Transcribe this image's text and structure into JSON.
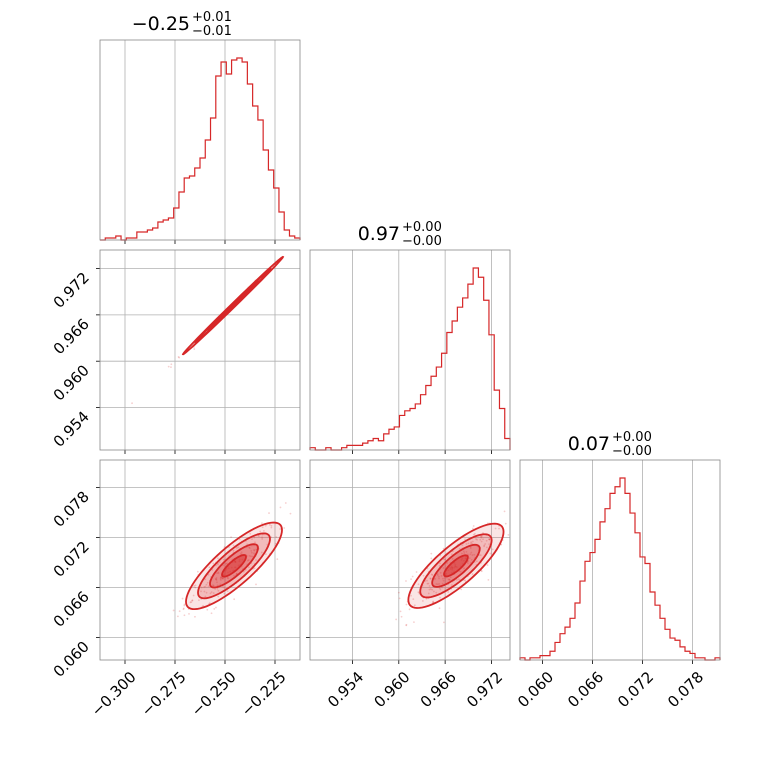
{
  "chart_data": {
    "type": "corner",
    "color": "#d62728",
    "titles": [
      {
        "value": "−0.25",
        "plus": "+0.01",
        "minus": "−0.01"
      },
      {
        "value": "0.97",
        "plus": "+0.00",
        "minus": "−0.00"
      },
      {
        "value": "0.07",
        "plus": "+0.00",
        "minus": "−0.00"
      }
    ],
    "params": [
      {
        "range": [
          -0.3125,
          -0.2125
        ],
        "ticks": [
          -0.3,
          -0.275,
          -0.25,
          -0.225
        ],
        "tick_labels": [
          "−0.300",
          "−0.275",
          "−0.250",
          "−0.225"
        ]
      },
      {
        "range": [
          0.9485,
          0.9744
        ],
        "ticks": [
          0.954,
          0.96,
          0.966,
          0.972
        ],
        "tick_labels": [
          "0.954",
          "0.960",
          "0.966",
          "0.972"
        ]
      },
      {
        "range": [
          0.0573,
          0.0813
        ],
        "ticks": [
          0.06,
          0.066,
          0.072,
          0.078
        ],
        "tick_labels": [
          "0.060",
          "0.066",
          "0.072",
          "0.078"
        ]
      }
    ],
    "histograms": [
      [
        0,
        1,
        1,
        2,
        0,
        1,
        1,
        4,
        4,
        5,
        6,
        9,
        10,
        11,
        16,
        24,
        31,
        32,
        36,
        41,
        50,
        61,
        82,
        89,
        83,
        90,
        91,
        89,
        78,
        67,
        60,
        45,
        35,
        26,
        14,
        5,
        2,
        1
      ],
      [
        1,
        0,
        0,
        1,
        0,
        0,
        1,
        2,
        2,
        2,
        3,
        4,
        5,
        4,
        7,
        9,
        10,
        15,
        17,
        18,
        20,
        24,
        28,
        32,
        36,
        42,
        51,
        56,
        62,
        66,
        72,
        79,
        75,
        65,
        50,
        26,
        18,
        5
      ],
      [
        1,
        0,
        1,
        1,
        2,
        2,
        4,
        8,
        12,
        15,
        19,
        26,
        36,
        45,
        49,
        55,
        63,
        69,
        76,
        79,
        83,
        76,
        67,
        58,
        47,
        44,
        31,
        25,
        19,
        14,
        10,
        9,
        6,
        4,
        3,
        1,
        1,
        0,
        0,
        1
      ]
    ],
    "pairs": [
      {
        "row": 1,
        "col": 0,
        "mean": [
          -0.246,
          0.9672
        ],
        "cov": [
          [
            0.0001562,
            3.938e-05
          ],
          [
            3.938e-05,
            9.96e-06
          ]
        ]
      },
      {
        "row": 2,
        "col": 0,
        "mean": [
          -0.2455,
          0.0686
        ],
        "cov": [
          [
            0.000144,
            2.58e-05
          ],
          [
            2.58e-05,
            6.76e-06
          ]
        ]
      },
      {
        "row": 2,
        "col": 1,
        "mean": [
          0.9674,
          0.0686
        ],
        "cov": [
          [
            9.5e-06,
            6.3e-06
          ],
          [
            6.3e-06,
            6.4e-06
          ]
        ]
      }
    ],
    "contour_levels": [
      0.5,
      1.0,
      1.5,
      2.0
    ],
    "grid": true
  }
}
